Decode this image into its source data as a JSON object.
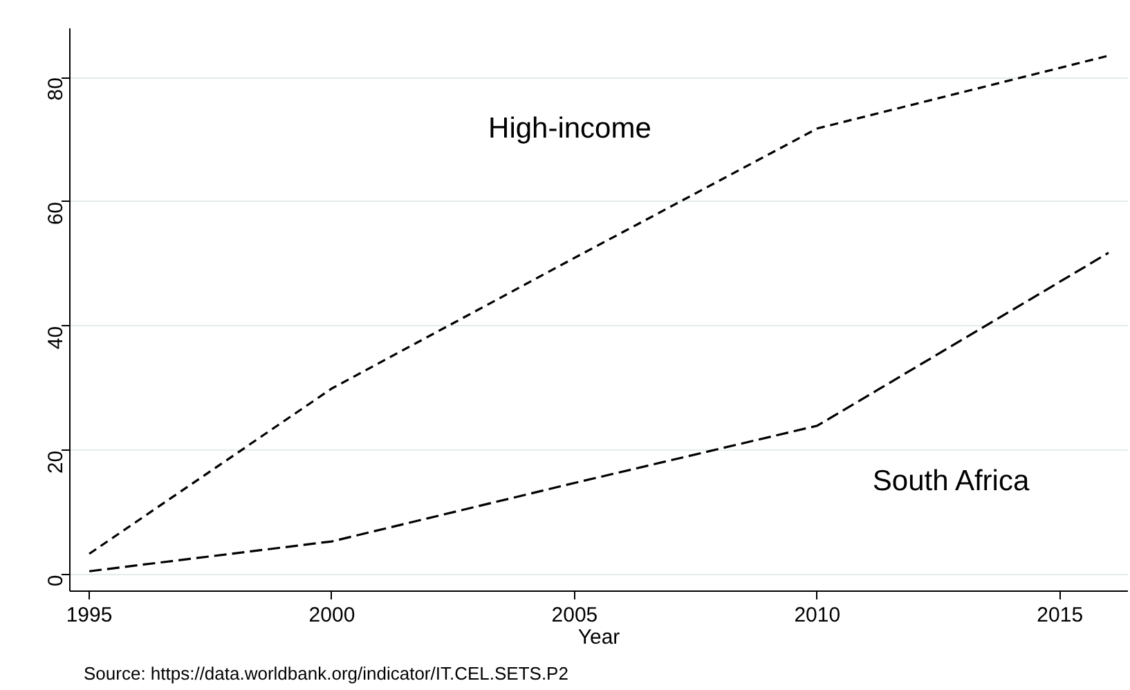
{
  "chart_data": {
    "type": "line",
    "xlabel": "Year",
    "x": [
      1995,
      2000,
      2005,
      2010,
      2016
    ],
    "series": [
      {
        "name": "High-income",
        "color": "#000000",
        "line_style": "dashed",
        "values": [
          3.4,
          30,
          51,
          71.8,
          83.5
        ]
      },
      {
        "name": "South Africa",
        "color": "#000000",
        "line_style": "dashed",
        "values": [
          0.6,
          5.4,
          14.8,
          24,
          51.8
        ]
      }
    ],
    "xlim": [
      1994.6,
      2016.4
    ],
    "xticks": [
      1995,
      2000,
      2005,
      2010,
      2015
    ],
    "ylim": [
      -2.6,
      87.9
    ],
    "yticks": [
      0,
      20,
      40,
      60,
      80
    ],
    "grid": "y",
    "annotations": [
      "Source: https://data.worldbank.org/indicator/IT.CEL.SETS.P2"
    ]
  }
}
